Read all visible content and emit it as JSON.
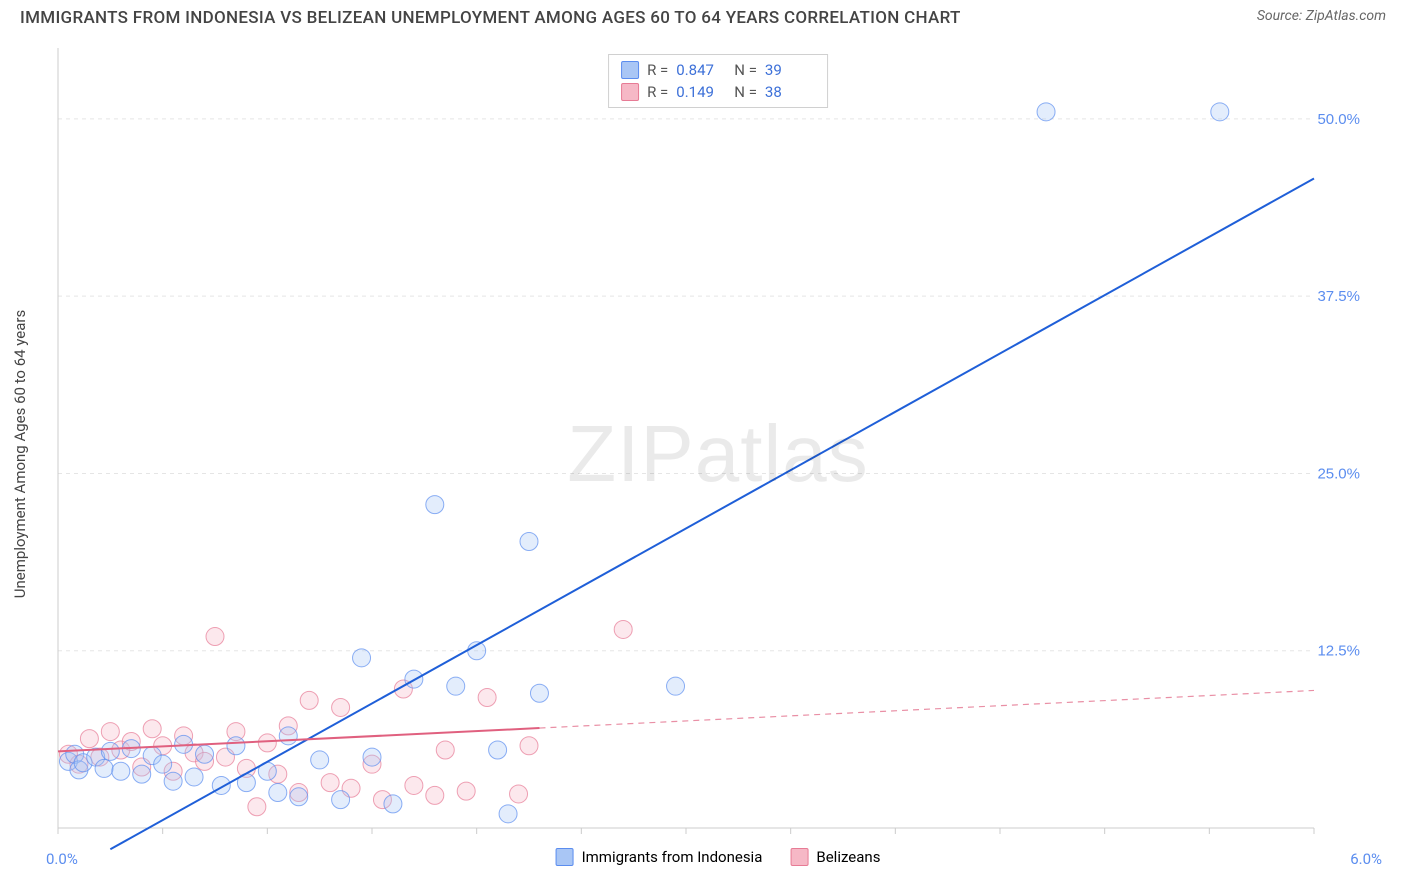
{
  "title": "IMMIGRANTS FROM INDONESIA VS BELIZEAN UNEMPLOYMENT AMONG AGES 60 TO 64 YEARS CORRELATION CHART",
  "source": "Source: ZipAtlas.com",
  "watermark_bold": "ZIP",
  "watermark_light": "atlas",
  "y_axis_label": "Unemployment Among Ages 60 to 64 years",
  "x_origin_label": "0.0%",
  "x_max_label": "6.0%",
  "chart": {
    "type": "scatter",
    "xlim": [
      0,
      6
    ],
    "ylim": [
      0,
      55
    ],
    "x_ticks": [
      0,
      0.5,
      1.0,
      1.5,
      2.0,
      2.5,
      3.0,
      3.5,
      4.0,
      4.5,
      5.0,
      5.5,
      6.0
    ],
    "y_ticks": [
      12.5,
      25.0,
      37.5,
      50.0
    ],
    "y_tick_labels": [
      "12.5%",
      "25.0%",
      "37.5%",
      "50.0%"
    ],
    "grid_color": "#e5e5e5",
    "grid_dash": "4,4",
    "axis_color": "#cccccc",
    "plot_bg": "#ffffff",
    "marker_radius": 9,
    "marker_opacity": 0.32,
    "series": [
      {
        "name": "Immigrants from Indonesia",
        "legend_label": "Immigrants from Indonesia",
        "color_fill": "#a9c6f5",
        "color_stroke": "#5b8def",
        "r_value": "0.847",
        "n_value": "39",
        "trend": {
          "x1": 0.25,
          "y1": -1.5,
          "x2": 6.0,
          "y2": 45.8,
          "solid_until_x": 6.0,
          "stroke": "#1f5fd8",
          "width": 2
        },
        "points": [
          [
            0.05,
            4.7
          ],
          [
            0.08,
            5.2
          ],
          [
            0.1,
            4.1
          ],
          [
            0.12,
            4.6
          ],
          [
            0.18,
            5.0
          ],
          [
            0.22,
            4.2
          ],
          [
            0.25,
            5.4
          ],
          [
            0.3,
            4.0
          ],
          [
            0.35,
            5.6
          ],
          [
            0.4,
            3.8
          ],
          [
            0.45,
            5.1
          ],
          [
            0.5,
            4.5
          ],
          [
            0.55,
            3.3
          ],
          [
            0.6,
            5.9
          ],
          [
            0.65,
            3.6
          ],
          [
            0.7,
            5.2
          ],
          [
            0.78,
            3.0
          ],
          [
            0.85,
            5.8
          ],
          [
            0.9,
            3.2
          ],
          [
            1.0,
            4.0
          ],
          [
            1.05,
            2.5
          ],
          [
            1.1,
            6.5
          ],
          [
            1.15,
            2.2
          ],
          [
            1.25,
            4.8
          ],
          [
            1.35,
            2.0
          ],
          [
            1.45,
            12.0
          ],
          [
            1.5,
            5.0
          ],
          [
            1.6,
            1.7
          ],
          [
            1.7,
            10.5
          ],
          [
            1.8,
            22.8
          ],
          [
            1.9,
            10.0
          ],
          [
            2.0,
            12.5
          ],
          [
            2.1,
            5.5
          ],
          [
            2.15,
            1.0
          ],
          [
            2.25,
            20.2
          ],
          [
            2.3,
            9.5
          ],
          [
            2.95,
            10.0
          ],
          [
            4.72,
            50.5
          ],
          [
            5.55,
            50.5
          ]
        ]
      },
      {
        "name": "Belizeans",
        "legend_label": "Belizeans",
        "color_fill": "#f6b8c6",
        "color_stroke": "#e77b95",
        "r_value": "0.149",
        "n_value": "38",
        "trend": {
          "x1": 0.0,
          "y1": 5.4,
          "x2": 6.0,
          "y2": 9.7,
          "solid_until_x": 2.3,
          "stroke": "#e0607f",
          "width": 2
        },
        "points": [
          [
            0.05,
            5.2
          ],
          [
            0.1,
            4.5
          ],
          [
            0.15,
            6.3
          ],
          [
            0.2,
            5.0
          ],
          [
            0.25,
            6.8
          ],
          [
            0.3,
            5.5
          ],
          [
            0.35,
            6.1
          ],
          [
            0.4,
            4.3
          ],
          [
            0.45,
            7.0
          ],
          [
            0.5,
            5.8
          ],
          [
            0.55,
            4.0
          ],
          [
            0.6,
            6.5
          ],
          [
            0.65,
            5.3
          ],
          [
            0.7,
            4.7
          ],
          [
            0.75,
            13.5
          ],
          [
            0.8,
            5.0
          ],
          [
            0.85,
            6.8
          ],
          [
            0.9,
            4.2
          ],
          [
            0.95,
            1.5
          ],
          [
            1.0,
            6.0
          ],
          [
            1.05,
            3.8
          ],
          [
            1.1,
            7.2
          ],
          [
            1.15,
            2.5
          ],
          [
            1.2,
            9.0
          ],
          [
            1.3,
            3.2
          ],
          [
            1.35,
            8.5
          ],
          [
            1.4,
            2.8
          ],
          [
            1.5,
            4.5
          ],
          [
            1.55,
            2.0
          ],
          [
            1.65,
            9.8
          ],
          [
            1.7,
            3.0
          ],
          [
            1.8,
            2.3
          ],
          [
            1.85,
            5.5
          ],
          [
            1.95,
            2.6
          ],
          [
            2.05,
            9.2
          ],
          [
            2.2,
            2.4
          ],
          [
            2.25,
            5.8
          ],
          [
            2.7,
            14.0
          ]
        ]
      }
    ]
  },
  "legend_top_rows": [
    {
      "sw_fill": "#a9c6f5",
      "sw_stroke": "#5b8def",
      "r": "0.847",
      "n": "39"
    },
    {
      "sw_fill": "#f6b8c6",
      "sw_stroke": "#e77b95",
      "r": "0.149",
      "n": "38"
    }
  ],
  "legend_bottom_items": [
    {
      "sw_fill": "#a9c6f5",
      "sw_stroke": "#5b8def",
      "label": "Immigrants from Indonesia"
    },
    {
      "sw_fill": "#f6b8c6",
      "sw_stroke": "#e77b95",
      "label": "Belizeans"
    }
  ],
  "r_label": "R =",
  "n_label": "N ="
}
